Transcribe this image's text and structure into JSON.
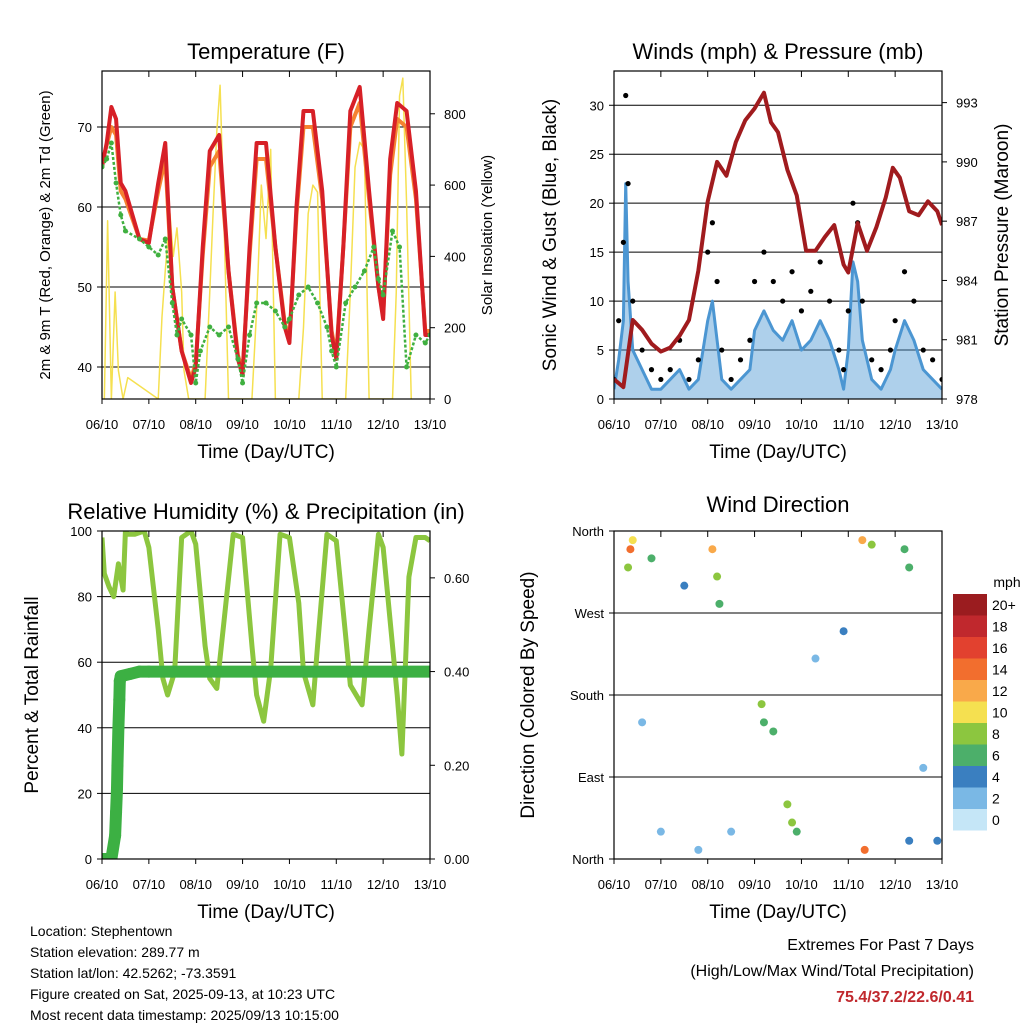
{
  "chart_data": [
    {
      "type": "line",
      "title": "Temperature (F)",
      "xlabel": "Time (Day/UTC)",
      "ylabel_left": "2m & 9m T (Red, Orange) & 2m Td (Green)",
      "ylabel_right": "Solar Insolation (Yellow)",
      "x_ticks": [
        "06/10",
        "07/10",
        "08/10",
        "09/10",
        "10/10",
        "11/10",
        "12/10",
        "13/10"
      ],
      "y_left_ticks": [
        40,
        50,
        60,
        70
      ],
      "y_right_ticks": [
        0,
        200,
        400,
        600,
        800
      ],
      "ylim_left": [
        36,
        77
      ],
      "ylim_right": [
        0,
        920
      ],
      "grid": "horizontal",
      "series": [
        {
          "color": "#d72027",
          "x": [
            6.0,
            6.1,
            6.2,
            6.3,
            6.4,
            6.5,
            6.8,
            7.0,
            7.2,
            7.35,
            7.5,
            7.7,
            7.9,
            8.0,
            8.15,
            8.3,
            8.5,
            8.7,
            8.9,
            9.0,
            9.15,
            9.3,
            9.5,
            9.7,
            9.9,
            10.0,
            10.15,
            10.3,
            10.5,
            10.7,
            10.9,
            11.0,
            11.15,
            11.3,
            11.5,
            11.7,
            11.9,
            12.0,
            12.15,
            12.3,
            12.5,
            12.7,
            12.9,
            13.0
          ],
          "values": [
            65,
            68,
            72.5,
            71,
            63,
            62,
            56,
            55.5,
            63,
            68,
            50,
            42,
            38,
            40,
            55,
            67,
            69,
            52,
            41,
            39,
            55,
            68,
            68,
            55,
            45,
            43,
            60,
            72,
            72,
            62,
            44,
            41,
            55,
            72,
            75,
            62,
            50,
            46,
            66,
            73,
            72,
            62,
            44,
            44
          ]
        },
        {
          "color": "#f58231",
          "x": [
            6.0,
            6.2,
            6.3,
            6.4,
            6.5,
            6.8,
            7.0,
            7.2,
            7.35,
            7.5,
            7.7,
            7.9,
            8.0,
            8.15,
            8.3,
            8.5,
            8.7,
            8.9,
            9.0,
            9.15,
            9.3,
            9.5,
            9.7,
            9.9,
            10.0,
            10.15,
            10.3,
            10.5,
            10.7,
            10.9,
            11.0,
            11.15,
            11.3,
            11.5,
            11.7,
            11.9,
            12.0,
            12.15,
            12.3,
            12.5,
            12.7,
            12.9,
            13.0
          ],
          "values": [
            65.5,
            70,
            69,
            62,
            61,
            56,
            55.8,
            62,
            66,
            50,
            42,
            38.5,
            40.5,
            54,
            65,
            67,
            52,
            41.5,
            39.5,
            54,
            66,
            66,
            55,
            45.5,
            43.5,
            59,
            70,
            70,
            61,
            44.5,
            41.5,
            55,
            70,
            73,
            61,
            50,
            46.5,
            64,
            71,
            70,
            61,
            44.5,
            44.5
          ]
        },
        {
          "color": "#40b040",
          "x": [
            6.0,
            6.1,
            6.2,
            6.3,
            6.4,
            6.5,
            6.8,
            7.0,
            7.2,
            7.35,
            7.5,
            7.6,
            7.7,
            7.9,
            8.0,
            8.1,
            8.3,
            8.5,
            8.7,
            8.9,
            9.0,
            9.15,
            9.3,
            9.5,
            9.7,
            9.9,
            10.0,
            10.2,
            10.4,
            10.6,
            10.8,
            10.9,
            11.0,
            11.2,
            11.4,
            11.6,
            11.8,
            11.9,
            12.0,
            12.2,
            12.35,
            12.5,
            12.7,
            12.9,
            13.0
          ],
          "values": [
            65,
            66,
            68,
            63,
            59,
            57,
            56,
            55,
            54,
            56,
            48,
            44,
            46,
            44,
            38,
            42,
            45,
            44,
            45,
            41,
            38,
            44,
            48,
            48,
            47,
            45,
            46,
            49,
            50,
            48,
            45,
            42,
            40,
            48,
            50,
            52,
            55,
            51,
            49,
            57,
            55,
            40,
            44,
            43,
            44
          ]
        },
        {
          "color": "#f5e050",
          "x": [
            6.05,
            6.12,
            6.2,
            6.28,
            6.35,
            6.45,
            6.55,
            7.2,
            7.28,
            7.35,
            7.45,
            7.52,
            7.6,
            7.7,
            7.75,
            7.85,
            8.2,
            8.3,
            8.37,
            8.45,
            8.52,
            8.6,
            8.7,
            9.2,
            9.3,
            9.4,
            9.5,
            9.6,
            9.7,
            10.2,
            10.3,
            10.4,
            10.5,
            10.6,
            10.7,
            11.2,
            11.3,
            11.4,
            11.5,
            11.6,
            11.7,
            12.2,
            12.28,
            12.35,
            12.42,
            12.5,
            12.6
          ],
          "values": [
            0,
            500,
            0,
            300,
            80,
            0,
            60,
            0,
            230,
            360,
            520,
            400,
            480,
            300,
            80,
            0,
            0,
            300,
            520,
            750,
            880,
            520,
            0,
            0,
            250,
            600,
            450,
            700,
            0,
            0,
            200,
            520,
            600,
            580,
            0,
            0,
            300,
            650,
            720,
            700,
            0,
            0,
            300,
            850,
            900,
            550,
            0
          ]
        }
      ]
    },
    {
      "type": "scatter",
      "title": "Winds (mph) & Pressure (mb)",
      "xlabel": "Time (Day/UTC)",
      "ylabel_left": "Sonic Wind & Gust (Blue, Black)",
      "ylabel_right": "Station Pressure (Maroon)",
      "x_ticks": [
        "06/10",
        "07/10",
        "08/10",
        "09/10",
        "10/10",
        "11/10",
        "12/10",
        "13/10"
      ],
      "y_left_ticks": [
        0,
        5,
        10,
        15,
        20,
        25,
        30
      ],
      "y_right_ticks": [
        978,
        981,
        984,
        987,
        990,
        993
      ],
      "ylim_left": [
        0,
        33.5
      ],
      "ylim_right": [
        978,
        994.6
      ],
      "grid": "horizontal",
      "series": [
        {
          "name": "Pressure",
          "color": "#a01b1e",
          "x": [
            6.0,
            6.2,
            6.4,
            6.6,
            6.8,
            7.0,
            7.2,
            7.4,
            7.6,
            7.8,
            8.0,
            8.2,
            8.4,
            8.6,
            8.8,
            9.0,
            9.2,
            9.35,
            9.5,
            9.7,
            9.9,
            10.1,
            10.3,
            10.5,
            10.7,
            10.9,
            11.0,
            11.2,
            11.4,
            11.6,
            11.8,
            11.95,
            12.1,
            12.3,
            12.5,
            12.7,
            12.9,
            13.0
          ],
          "values": [
            979,
            978.6,
            982,
            981.5,
            980.8,
            980.4,
            980.6,
            981.2,
            982,
            984.5,
            988,
            990,
            989.3,
            991,
            992.1,
            992.7,
            993.5,
            992,
            991.5,
            989.6,
            988.3,
            985.5,
            985.5,
            986.2,
            986.8,
            984.8,
            984.4,
            986.9,
            985.5,
            986.7,
            988.2,
            989.7,
            989.2,
            987.5,
            987.3,
            988,
            987.5,
            986.8
          ]
        },
        {
          "name": "Gust",
          "color": "#000000",
          "x": [
            6.0,
            6.1,
            6.2,
            6.25,
            6.3,
            6.4,
            6.6,
            6.8,
            7.0,
            7.2,
            7.4,
            7.6,
            7.8,
            8.0,
            8.1,
            8.2,
            8.3,
            8.5,
            8.7,
            8.9,
            9.0,
            9.2,
            9.4,
            9.6,
            9.8,
            10.0,
            10.2,
            10.4,
            10.6,
            10.8,
            10.9,
            11.0,
            11.1,
            11.2,
            11.3,
            11.5,
            11.7,
            11.9,
            12.0,
            12.2,
            12.4,
            12.6,
            12.8,
            13.0
          ],
          "values": [
            2,
            8,
            16,
            31,
            22,
            10,
            5,
            3,
            2,
            3,
            6,
            2,
            4,
            15,
            18,
            12,
            5,
            2,
            4,
            6,
            12,
            15,
            12,
            10,
            13,
            9,
            11,
            14,
            10,
            5,
            3,
            9,
            20,
            18,
            10,
            4,
            3,
            5,
            8,
            13,
            10,
            5,
            4,
            2
          ]
        },
        {
          "name": "Wind",
          "color": "#4c96d2",
          "x": [
            6.0,
            6.1,
            6.2,
            6.25,
            6.3,
            6.4,
            6.6,
            6.8,
            7.0,
            7.2,
            7.4,
            7.6,
            7.8,
            8.0,
            8.1,
            8.2,
            8.3,
            8.5,
            8.7,
            8.9,
            9.0,
            9.2,
            9.4,
            9.6,
            9.8,
            10.0,
            10.2,
            10.4,
            10.6,
            10.8,
            10.9,
            11.0,
            11.1,
            11.2,
            11.3,
            11.5,
            11.7,
            11.9,
            12.0,
            12.2,
            12.4,
            12.6,
            12.8,
            13.0
          ],
          "values": [
            1,
            4,
            8,
            22,
            12,
            5,
            3,
            1,
            1,
            2,
            3,
            1,
            2,
            8,
            10,
            6,
            2,
            1,
            2,
            3,
            7,
            9,
            7,
            6,
            8,
            5,
            6,
            8,
            6,
            3,
            1,
            5,
            14,
            12,
            6,
            2,
            1,
            3,
            5,
            8,
            6,
            3,
            2,
            1
          ]
        }
      ]
    },
    {
      "type": "line",
      "title": "Relative Humidity (%) & Precipitation (in)",
      "xlabel": "Time (Day/UTC)",
      "ylabel_left": "Percent & Total Rainfall",
      "x_ticks": [
        "06/10",
        "07/10",
        "08/10",
        "09/10",
        "10/10",
        "11/10",
        "12/10",
        "13/10"
      ],
      "y_left_ticks": [
        0,
        20,
        40,
        60,
        80,
        100
      ],
      "y_right_ticks": [
        "0.00",
        "0.20",
        "0.40",
        "0.60"
      ],
      "ylim_left": [
        0,
        100
      ],
      "ylim_right": [
        0,
        0.7
      ],
      "grid": "horizontal",
      "series": [
        {
          "name": "Relative Humidity",
          "color": "#8cc63f",
          "x": [
            6.0,
            6.05,
            6.15,
            6.25,
            6.35,
            6.45,
            6.5,
            6.55,
            6.7,
            6.9,
            7.0,
            7.2,
            7.3,
            7.4,
            7.55,
            7.7,
            7.9,
            8.0,
            8.2,
            8.3,
            8.45,
            8.6,
            8.8,
            9.0,
            9.2,
            9.3,
            9.45,
            9.6,
            9.8,
            10.0,
            10.2,
            10.3,
            10.5,
            10.6,
            10.8,
            11.0,
            11.2,
            11.3,
            11.55,
            11.7,
            11.9,
            12.0,
            12.3,
            12.4,
            12.55,
            12.7,
            12.9,
            13.0
          ],
          "values": [
            98,
            87,
            83,
            80,
            90,
            82,
            100,
            99,
            99,
            100,
            95,
            70,
            55,
            50,
            57,
            98,
            100,
            96,
            65,
            55,
            52,
            72,
            99,
            98,
            65,
            50,
            42,
            58,
            99,
            98,
            78,
            57,
            47,
            65,
            99,
            97,
            68,
            53,
            47,
            70,
            99,
            95,
            50,
            32,
            86,
            98,
            98,
            97
          ]
        },
        {
          "name": "Total Rainfall",
          "color": "#3cb043",
          "x": [
            6.0,
            6.2,
            6.28,
            6.3,
            6.32,
            6.33,
            6.35,
            6.37,
            6.38,
            6.4,
            6.6,
            6.8,
            7.0,
            7.5,
            13.0
          ],
          "values": [
            0,
            0,
            0.05,
            0.1,
            0.15,
            0.2,
            0.28,
            0.34,
            0.38,
            0.39,
            0.395,
            0.4,
            0.4,
            0.4,
            0.4
          ]
        }
      ]
    },
    {
      "type": "scatter",
      "title": "Wind Direction",
      "xlabel": "Time (Day/UTC)",
      "ylabel_left": "Direction (Colored By Speed)",
      "x_ticks": [
        "06/10",
        "07/10",
        "08/10",
        "09/10",
        "10/10",
        "11/10",
        "12/10",
        "13/10"
      ],
      "y_left_ticks": [
        "North",
        "East",
        "South",
        "West",
        "North"
      ],
      "ylim_left": [
        0,
        360
      ],
      "grid": "horizontal",
      "legend": {
        "title": "mph",
        "labels": [
          "20+",
          "18",
          "16",
          "14",
          "12",
          "10",
          "8",
          "6",
          "4",
          "2",
          "0"
        ],
        "colors": [
          "#9b1c1f",
          "#c0282d",
          "#e2412f",
          "#f26e2e",
          "#f9a94a",
          "#f5e050",
          "#8cc63f",
          "#4caf6a",
          "#3a7fc0",
          "#7ab8e5",
          "#c5e6f7"
        ]
      },
      "clusters": [
        {
          "t": 6.35,
          "deg": 340,
          "speed": 14
        },
        {
          "t": 6.4,
          "deg": 350,
          "speed": 10
        },
        {
          "t": 6.3,
          "deg": 320,
          "speed": 8
        },
        {
          "t": 6.6,
          "deg": 150,
          "speed": 2
        },
        {
          "t": 6.8,
          "deg": 330,
          "speed": 6
        },
        {
          "t": 7.0,
          "deg": 30,
          "speed": 2
        },
        {
          "t": 7.5,
          "deg": 300,
          "speed": 4
        },
        {
          "t": 7.8,
          "deg": 10,
          "speed": 2
        },
        {
          "t": 8.1,
          "deg": 340,
          "speed": 12
        },
        {
          "t": 8.2,
          "deg": 310,
          "speed": 8
        },
        {
          "t": 8.25,
          "deg": 280,
          "speed": 6
        },
        {
          "t": 8.5,
          "deg": 30,
          "speed": 2
        },
        {
          "t": 9.15,
          "deg": 170,
          "speed": 8
        },
        {
          "t": 9.2,
          "deg": 150,
          "speed": 6
        },
        {
          "t": 9.4,
          "deg": 140,
          "speed": 6
        },
        {
          "t": 9.7,
          "deg": 60,
          "speed": 8
        },
        {
          "t": 9.8,
          "deg": 40,
          "speed": 8
        },
        {
          "t": 9.9,
          "deg": 30,
          "speed": 6
        },
        {
          "t": 10.3,
          "deg": 220,
          "speed": 2
        },
        {
          "t": 10.9,
          "deg": 250,
          "speed": 4
        },
        {
          "t": 11.3,
          "deg": 350,
          "speed": 12
        },
        {
          "t": 11.35,
          "deg": 10,
          "speed": 14
        },
        {
          "t": 11.5,
          "deg": 345,
          "speed": 8
        },
        {
          "t": 12.2,
          "deg": 340,
          "speed": 6
        },
        {
          "t": 12.3,
          "deg": 320,
          "speed": 6
        },
        {
          "t": 12.3,
          "deg": 20,
          "speed": 4
        },
        {
          "t": 12.6,
          "deg": 100,
          "speed": 2
        },
        {
          "t": 12.9,
          "deg": 20,
          "speed": 4
        }
      ]
    }
  ],
  "info": {
    "location": "Location: Stephentown",
    "elevation": "Station elevation: 289.77 m",
    "latlon": "Station lat/lon: 42.5262; -73.3591",
    "created": "Figure created on Sat, 2025-09-13, at 10:23 UTC",
    "recent": "Most recent data timestamp: 2025/09/13 10:15:00"
  },
  "extremes": {
    "title": "Extremes For Past 7 Days",
    "subtitle": "(High/Low/Max Wind/Total Precipitation)",
    "values": "75.4/37.2/22.6/0.41"
  }
}
